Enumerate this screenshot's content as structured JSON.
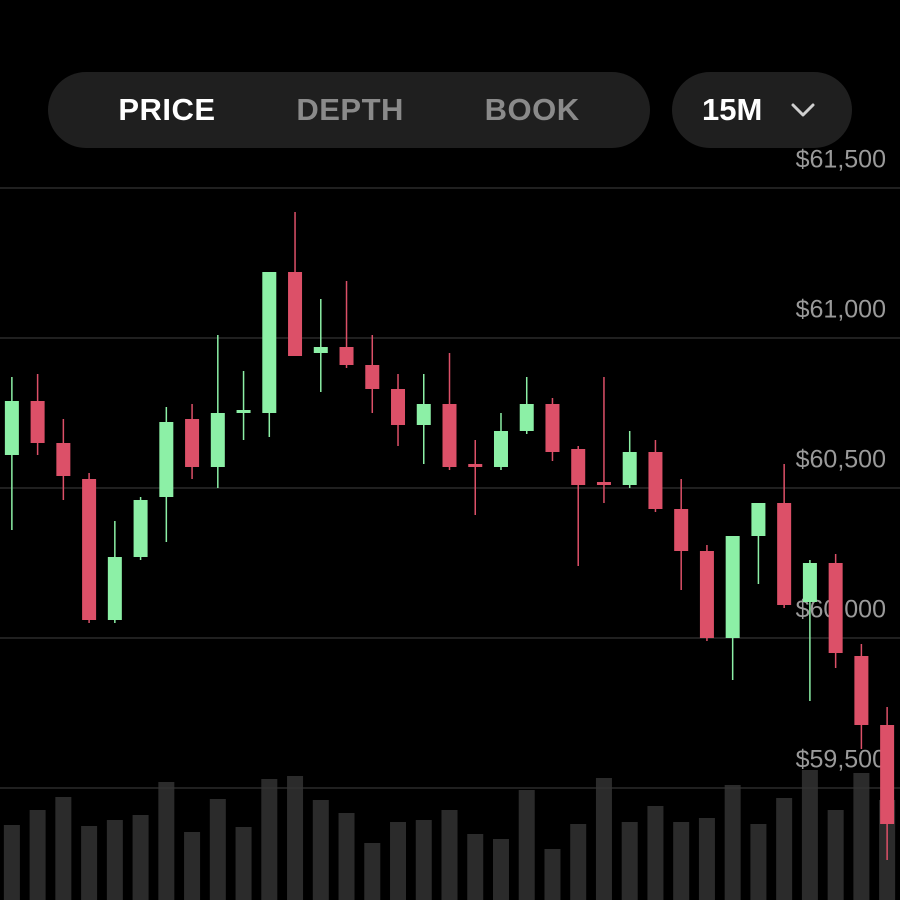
{
  "tabs": [
    "PRICE",
    "DEPTH",
    "BOOK"
  ],
  "interval": "15M",
  "chart_data": {
    "type": "candlestick",
    "open": [
      60610,
      60790,
      60650,
      60530,
      60060,
      60270,
      60470,
      60730,
      60570,
      60750,
      60750,
      61220,
      60950,
      60970,
      60910,
      60830,
      60710,
      60780,
      60580,
      60570,
      60690,
      60780,
      60630,
      60520,
      60510,
      60620,
      60430,
      60290,
      60000,
      60340,
      60450,
      60120,
      60250,
      59940,
      59710
    ],
    "high": [
      60870,
      60880,
      60730,
      60550,
      60390,
      60470,
      60770,
      60780,
      61010,
      60890,
      61220,
      61420,
      61130,
      61190,
      61010,
      60880,
      60880,
      60950,
      60660,
      60750,
      60870,
      60800,
      60640,
      60870,
      60690,
      60660,
      60530,
      60310,
      60340,
      60450,
      60580,
      60260,
      60280,
      59980,
      59770
    ],
    "low": [
      60360,
      60610,
      60460,
      60050,
      60050,
      60260,
      60320,
      60530,
      60500,
      60660,
      60670,
      60940,
      60820,
      60900,
      60750,
      60640,
      60580,
      60560,
      60410,
      60560,
      60680,
      60590,
      60240,
      60450,
      60500,
      60420,
      60160,
      59990,
      59860,
      60180,
      60100,
      59790,
      59900,
      59630,
      59260
    ],
    "close": [
      60790,
      60650,
      60540,
      60060,
      60270,
      60460,
      60720,
      60570,
      60750,
      60760,
      61220,
      60940,
      60970,
      60910,
      60830,
      60710,
      60780,
      60570,
      60570,
      60690,
      60780,
      60620,
      60510,
      60510,
      60620,
      60430,
      60290,
      60000,
      60340,
      60450,
      60110,
      60250,
      59950,
      59710,
      59380
    ],
    "volume": [
      75,
      90,
      103,
      74,
      80,
      85,
      118,
      68,
      101,
      73,
      121,
      124,
      100,
      87,
      57,
      78,
      80,
      90,
      66,
      61,
      110,
      51,
      76,
      122,
      78,
      94,
      78,
      82,
      115,
      76,
      102,
      130,
      90,
      127,
      100
    ],
    "up_color": "#8cf0a6",
    "down_color": "#dc5068",
    "volume_color": "#2b2b2b",
    "ylim": [
      59250,
      61750
    ],
    "yticks": [
      {
        "value": 59500,
        "label": "$59,500"
      },
      {
        "value": 60000,
        "label": "$60,000"
      },
      {
        "value": 60500,
        "label": "$60,500"
      },
      {
        "value": 61000,
        "label": "$61,000"
      },
      {
        "value": 61500,
        "label": "$61,500"
      }
    ],
    "grid": true
  }
}
